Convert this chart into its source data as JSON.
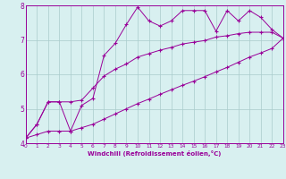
{
  "xlabel": "Windchill (Refroidissement éolien,°C)",
  "background_color": "#d8f0f0",
  "line_color": "#990099",
  "grid_color": "#aacccc",
  "xmin": 0,
  "xmax": 23,
  "ymin": 4,
  "ymax": 8,
  "line1_x": [
    0,
    1,
    2,
    3,
    4,
    5,
    6,
    7,
    8,
    9,
    10,
    11,
    12,
    13,
    14,
    15,
    16,
    17,
    18,
    19,
    20,
    21,
    22,
    23
  ],
  "line1_y": [
    4.15,
    4.55,
    5.2,
    5.2,
    4.35,
    5.1,
    5.3,
    6.55,
    6.9,
    7.45,
    7.95,
    7.55,
    7.4,
    7.55,
    7.85,
    7.85,
    7.85,
    7.25,
    7.85,
    7.55,
    7.85,
    7.65,
    7.3,
    7.05
  ],
  "line2_x": [
    0,
    1,
    2,
    3,
    4,
    5,
    6,
    7,
    8,
    9,
    10,
    11,
    12,
    13,
    14,
    15,
    16,
    17,
    18,
    19,
    20,
    21,
    22,
    23
  ],
  "line2_y": [
    4.15,
    4.55,
    5.2,
    5.2,
    5.2,
    5.25,
    5.6,
    5.95,
    6.15,
    6.3,
    6.5,
    6.6,
    6.7,
    6.78,
    6.88,
    6.93,
    6.98,
    7.08,
    7.12,
    7.18,
    7.22,
    7.22,
    7.22,
    7.05
  ],
  "line3_x": [
    0,
    1,
    2,
    3,
    4,
    5,
    6,
    7,
    8,
    9,
    10,
    11,
    12,
    13,
    14,
    15,
    16,
    17,
    18,
    19,
    20,
    21,
    22,
    23
  ],
  "line3_y": [
    4.15,
    4.25,
    4.35,
    4.35,
    4.35,
    4.45,
    4.55,
    4.7,
    4.85,
    5.0,
    5.15,
    5.28,
    5.42,
    5.55,
    5.68,
    5.8,
    5.93,
    6.07,
    6.2,
    6.35,
    6.5,
    6.62,
    6.75,
    7.05
  ]
}
